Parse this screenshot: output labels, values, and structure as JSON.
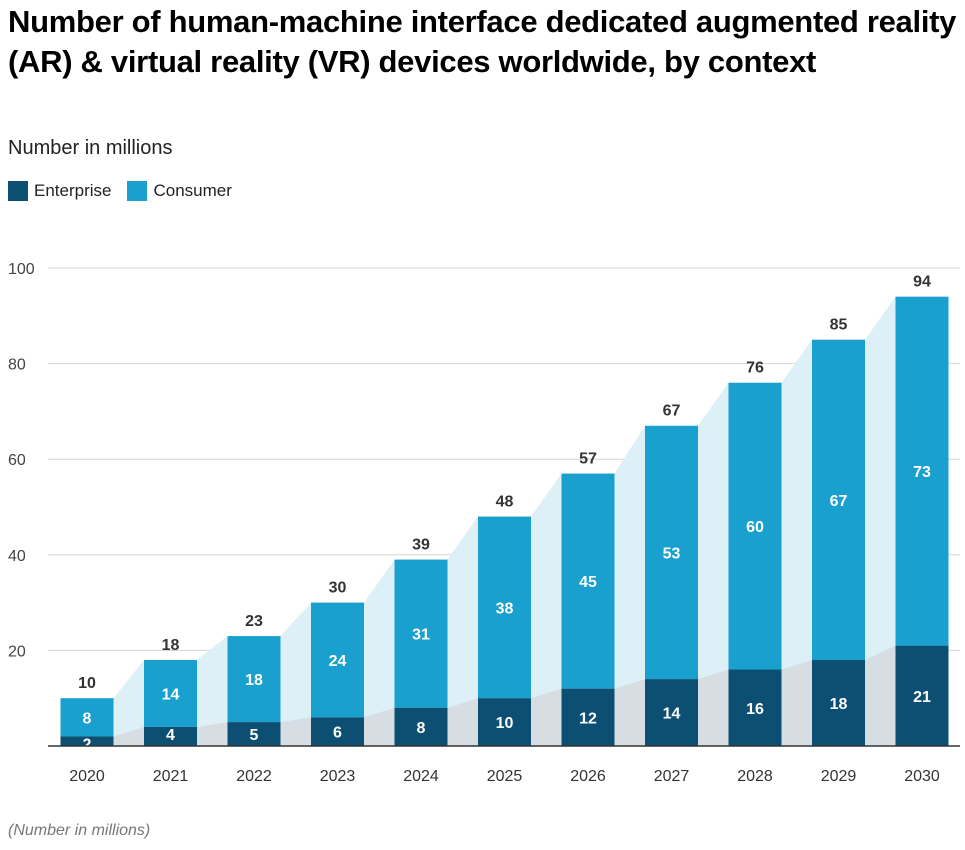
{
  "title": "Number of human-machine interface dedicated augmented reality (AR) & virtual reality (VR) devices worldwide, by context",
  "subtitle": "Number in millions",
  "footer": "(Number in millions)",
  "colors": {
    "enterprise": "#0d4f72",
    "consumer": "#1aa0ce",
    "enterprise_band": "#d6dee4",
    "consumer_band": "#ddf0f7"
  },
  "chart_data": {
    "type": "bar",
    "stacked": true,
    "categories": [
      "2020",
      "2021",
      "2022",
      "2023",
      "2024",
      "2025",
      "2026",
      "2027",
      "2028",
      "2029",
      "2030"
    ],
    "series": [
      {
        "name": "Enterprise",
        "values": [
          2,
          4,
          5,
          6,
          8,
          10,
          12,
          14,
          16,
          18,
          21
        ]
      },
      {
        "name": "Consumer",
        "values": [
          8,
          14,
          18,
          24,
          31,
          38,
          45,
          53,
          60,
          67,
          73
        ]
      }
    ],
    "totals": [
      10,
      18,
      23,
      30,
      39,
      48,
      57,
      67,
      76,
      85,
      94
    ],
    "ylim": [
      0,
      100
    ],
    "yticks": [
      20,
      40,
      60,
      80,
      100
    ],
    "xlabel": "",
    "ylabel": "Number in millions",
    "grid": true,
    "legend": "top-left"
  }
}
